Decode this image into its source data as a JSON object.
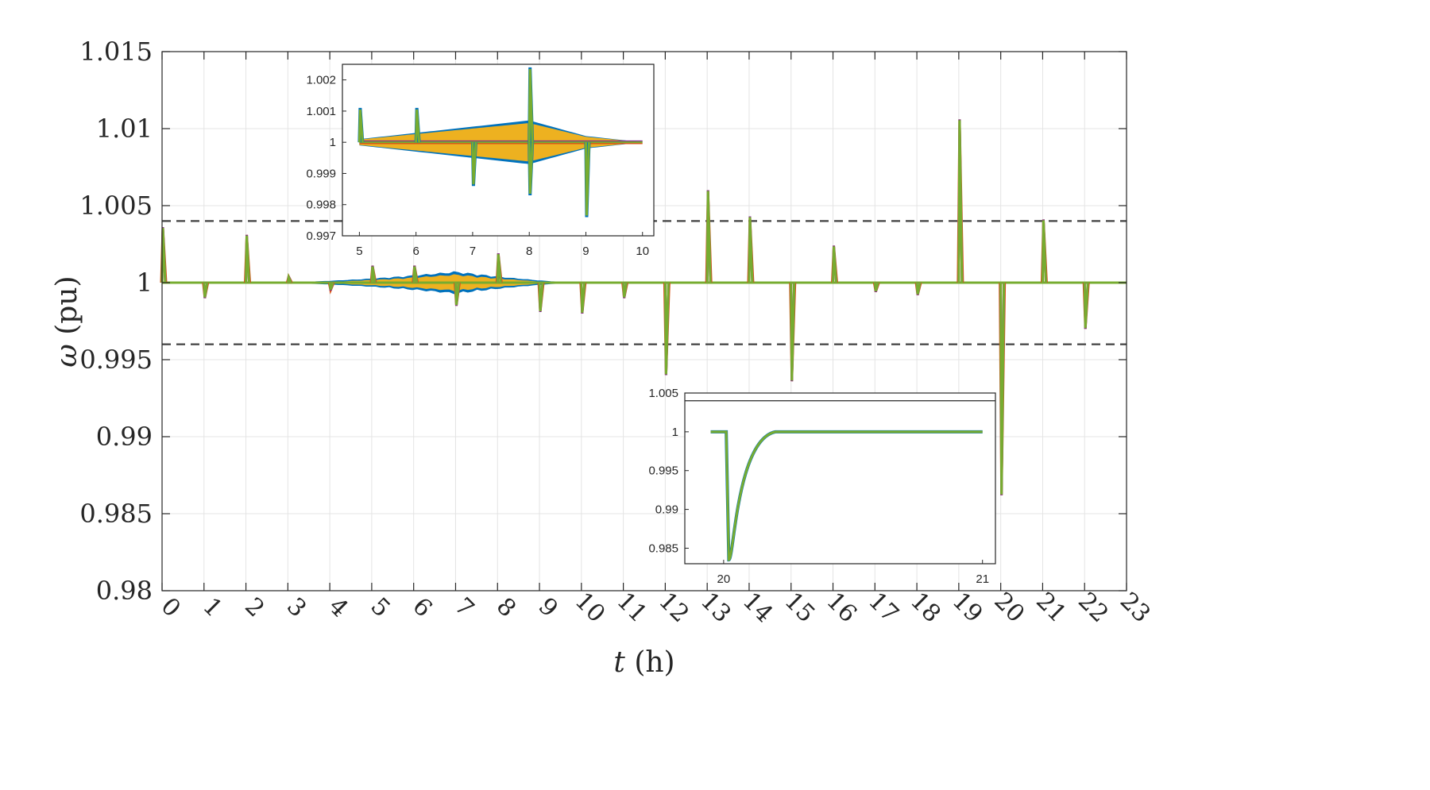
{
  "chart_data": [
    {
      "type": "line",
      "role": "main",
      "xlabel_var": "t",
      "xlabel_unit": "(h)",
      "ylabel_var": "ω",
      "ylabel_unit": "(pu)",
      "xlim": [
        0,
        23
      ],
      "ylim": [
        0.98,
        1.015
      ],
      "x_ticks": [
        0,
        1,
        2,
        3,
        4,
        5,
        6,
        7,
        8,
        9,
        10,
        11,
        12,
        13,
        14,
        15,
        16,
        17,
        18,
        19,
        20,
        21,
        22,
        23
      ],
      "y_ticks": [
        0.98,
        0.985,
        0.99,
        0.995,
        1,
        1.005,
        1.01,
        1.015
      ],
      "y_tick_labels": [
        "0.98",
        "0.985",
        "0.99",
        "0.995",
        "1",
        "1.005",
        "1.01",
        "1.015"
      ],
      "grid": true,
      "reference_lines": [
        1.004,
        0.996
      ],
      "steady_value": 1,
      "spikes": [
        {
          "t": 0,
          "peak": 1.0036
        },
        {
          "t": 1,
          "peak": 0.999
        },
        {
          "t": 2,
          "peak": 1.0031
        },
        {
          "t": 3,
          "peak": 1.0004
        },
        {
          "t": 4,
          "peak": 0.9995
        },
        {
          "t": 5,
          "peak": 1.0011
        },
        {
          "t": 6,
          "peak": 1.0011
        },
        {
          "t": 7,
          "peak": 0.9985
        },
        {
          "t": 8,
          "peak": 1.0019
        },
        {
          "t": 9,
          "peak": 0.9981
        },
        {
          "t": 10,
          "peak": 0.998
        },
        {
          "t": 11,
          "peak": 0.999
        },
        {
          "t": 12,
          "peak": 0.994
        },
        {
          "t": 13,
          "peak": 1.006
        },
        {
          "t": 14,
          "peak": 1.0043
        },
        {
          "t": 15,
          "peak": 0.9936
        },
        {
          "t": 16,
          "peak": 1.0024
        },
        {
          "t": 17,
          "peak": 0.9994
        },
        {
          "t": 18,
          "peak": 0.9992
        },
        {
          "t": 19,
          "peak": 1.0106
        },
        {
          "t": 20,
          "peak": 0.9862
        },
        {
          "t": 21,
          "peak": 1.0041
        },
        {
          "t": 22,
          "peak": 0.997
        }
      ],
      "oscillation_band": {
        "t_start": 3,
        "t_end": 9.6,
        "t_peak": 7,
        "max_amplitude": 0.0007
      },
      "colors": {
        "series_a": "#0072BD",
        "series_b": "#EDB120",
        "series_c": "#7E2F8E",
        "series_d": "#D95319",
        "series_e": "#77AC30",
        "reference": "#404040"
      }
    },
    {
      "type": "line",
      "role": "inset-zoom",
      "xlim": [
        4.7,
        10.2
      ],
      "ylim": [
        0.997,
        1.0025
      ],
      "x_ticks": [
        5,
        6,
        7,
        8,
        9,
        10
      ],
      "y_ticks": [
        0.997,
        0.998,
        0.999,
        1,
        1.001,
        1.002
      ],
      "y_tick_labels": [
        "0.997",
        "0.998",
        "0.999",
        "1",
        "1.001",
        "1.002"
      ],
      "spikes": [
        {
          "t": 5,
          "peak": 1.0011
        },
        {
          "t": 6,
          "peak": 1.0011
        },
        {
          "t": 7,
          "peak": 0.9986
        },
        {
          "t": 8,
          "peak": 1.0024
        },
        {
          "t": 8,
          "peak": 0.9983
        },
        {
          "t": 9,
          "peak": 0.9976
        }
      ],
      "envelope": [
        {
          "t": 5,
          "amp": 0.0001
        },
        {
          "t": 7,
          "amp": 0.0005
        },
        {
          "t": 8,
          "amp": 0.0007
        },
        {
          "t": 9,
          "amp": 0.0002
        },
        {
          "t": 10,
          "amp": 0
        }
      ]
    },
    {
      "type": "line",
      "role": "inset-zoom",
      "xlim": [
        19.85,
        21.05
      ],
      "ylim": [
        0.983,
        1.005
      ],
      "x_ticks": [
        20,
        21
      ],
      "y_ticks": [
        0.985,
        0.99,
        0.995,
        1,
        1.005
      ],
      "y_tick_labels": [
        "0.985",
        "0.99",
        "0.995",
        "1",
        "1.005"
      ],
      "dip": {
        "t_start": 19.95,
        "t_min": 20.02,
        "min_value": 0.9835,
        "recovery_t": 20.2,
        "end_t": 21
      }
    }
  ]
}
